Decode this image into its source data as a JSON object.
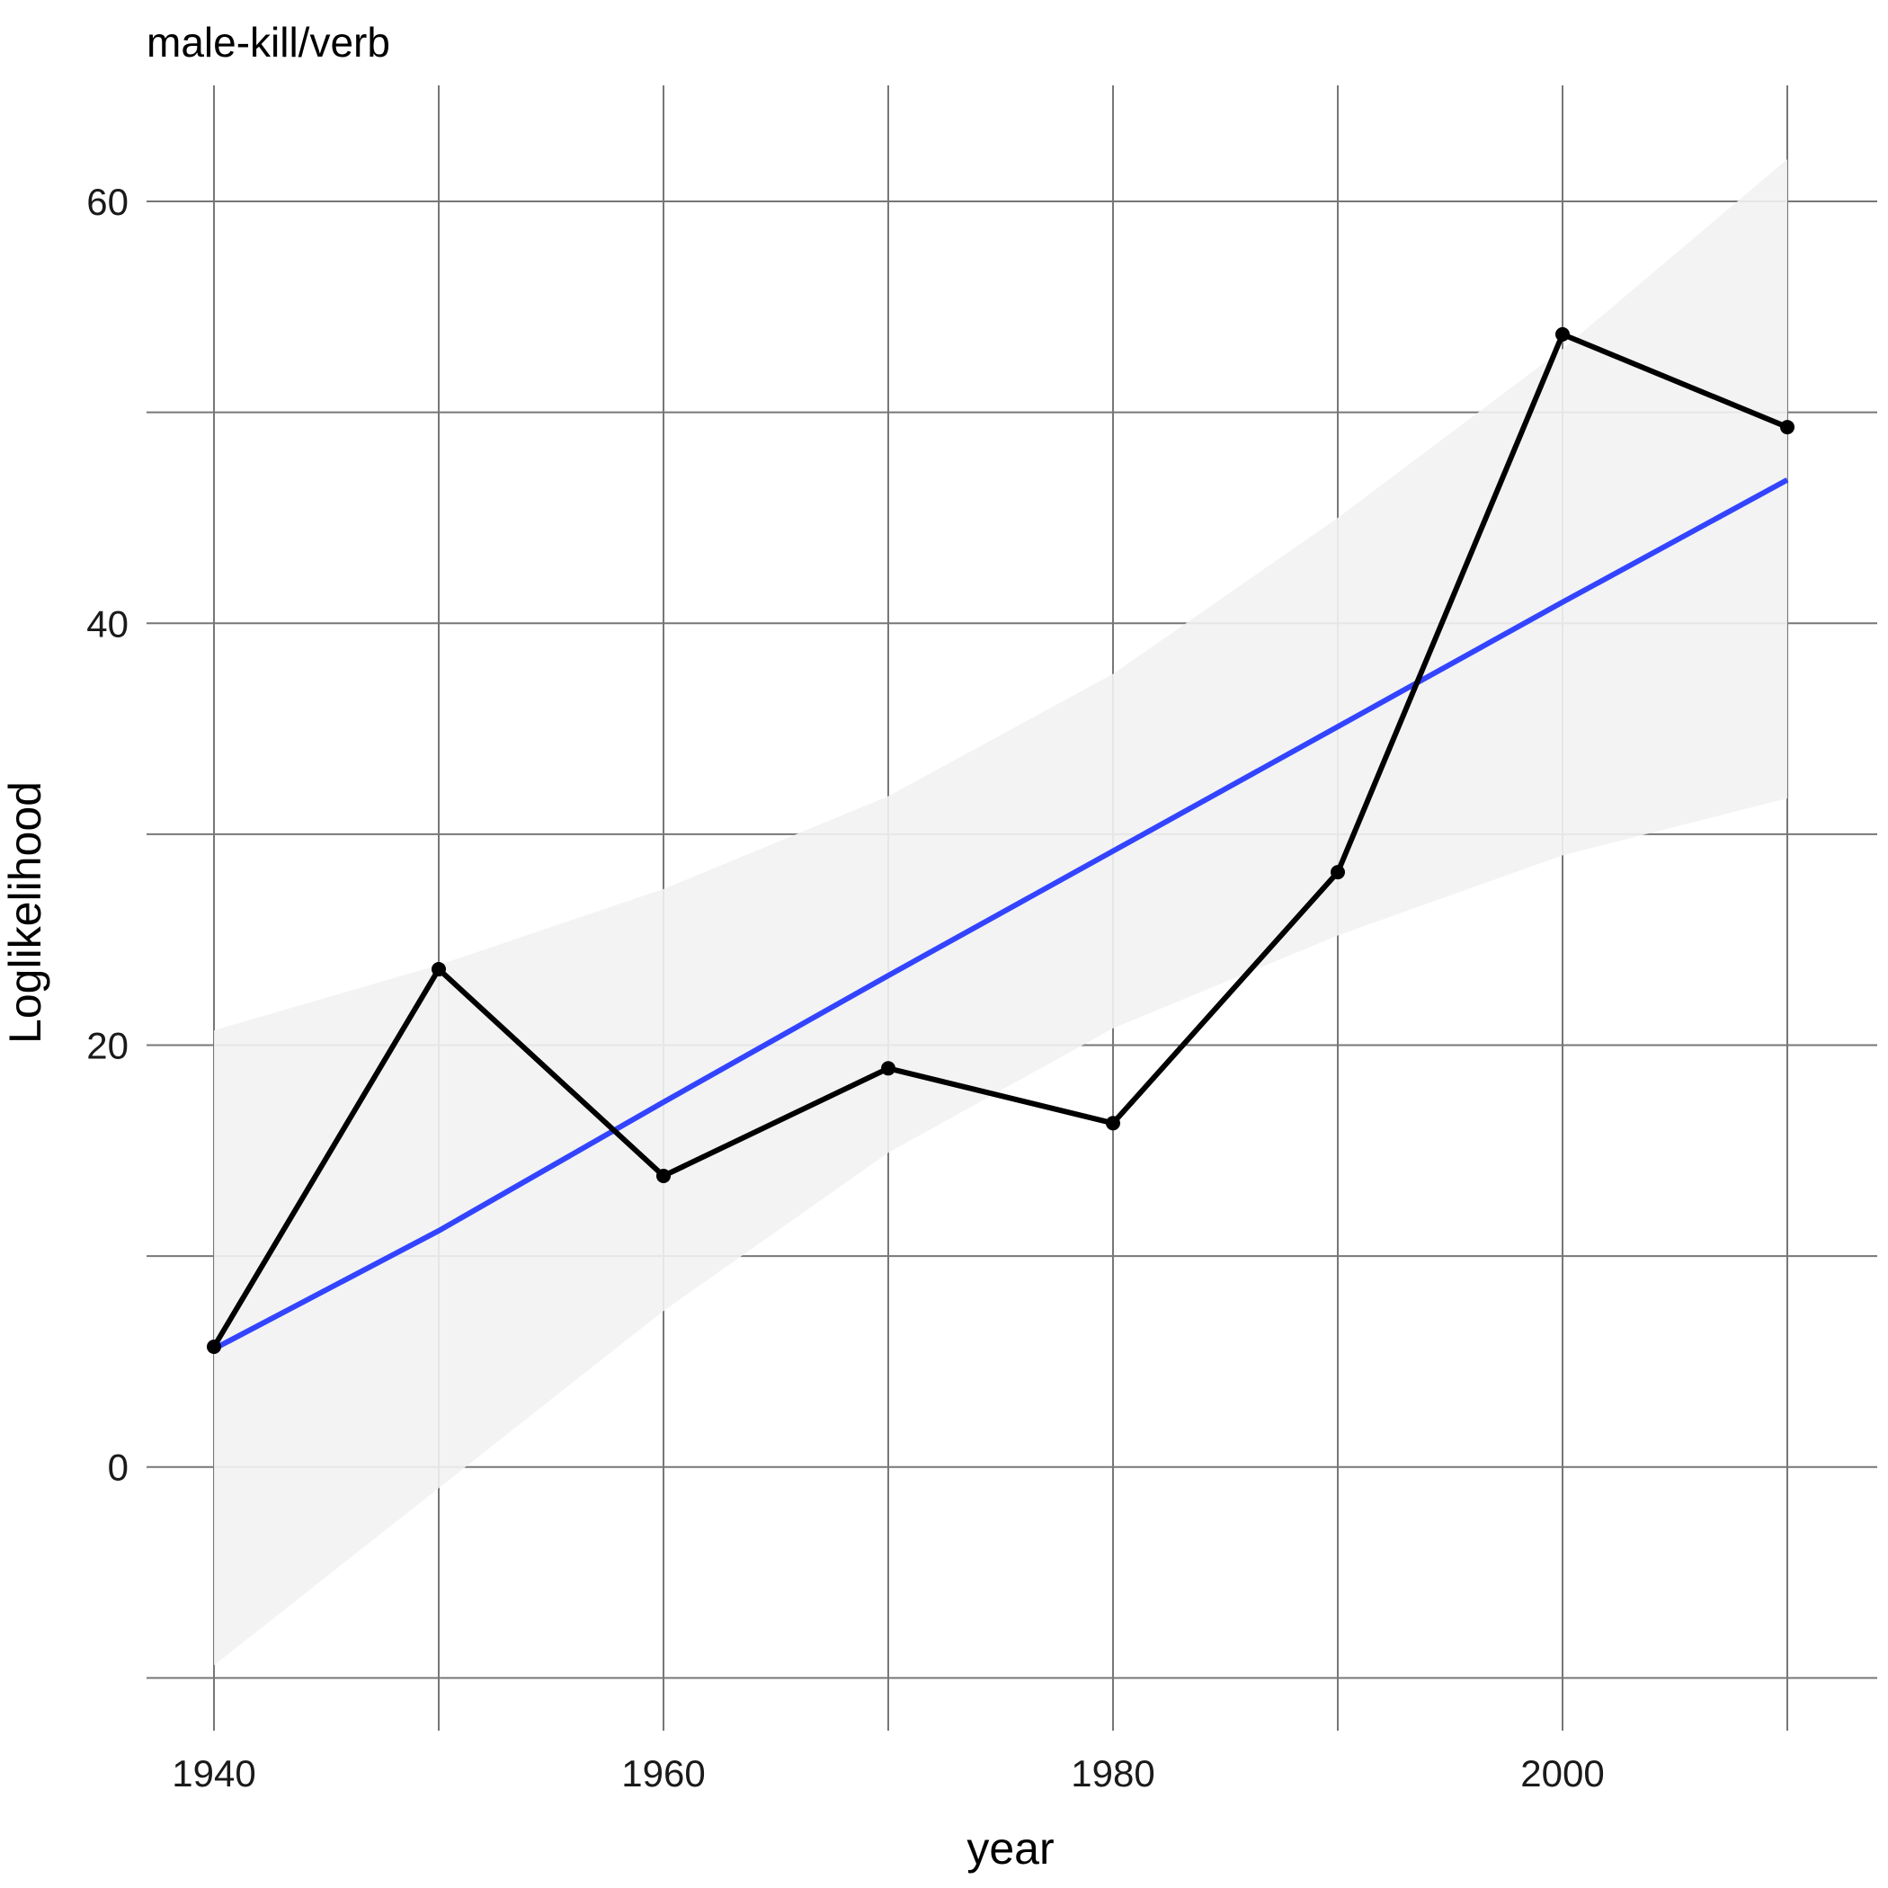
{
  "chart_data": {
    "type": "line",
    "title": "male-kill/verb",
    "xlabel": "year",
    "ylabel": "Loglikelihood",
    "x": [
      1940,
      1950,
      1960,
      1970,
      1980,
      1990,
      2000,
      2010
    ],
    "series": [
      {
        "values": [
          5.7,
          23.6,
          13.8,
          18.9,
          16.3,
          28.2,
          53.7,
          49.3
        ],
        "color": "#000000"
      }
    ],
    "fit": {
      "method": "linear",
      "color": "#3344ff",
      "band_color": "#f2f2f2",
      "x": [
        1940,
        1950,
        1960,
        1970,
        1980,
        1990,
        2000,
        2010
      ],
      "values": [
        5.6,
        11.2,
        17.3,
        23.3,
        29.2,
        35.1,
        41.0,
        46.8
      ],
      "band_upper": [
        20.7,
        23.8,
        27.4,
        31.8,
        37.6,
        45.0,
        53.0,
        62.0
      ],
      "band_lower": [
        -9.4,
        -1.0,
        7.4,
        14.9,
        20.8,
        25.2,
        29.0,
        31.7
      ]
    },
    "xlim": [
      1937,
      2014
    ],
    "ylim": [
      -12.5,
      65.5
    ],
    "x_major_ticks": [
      1940,
      1960,
      1980,
      2000
    ],
    "x_minor_ticks": [
      1950,
      1970,
      1990,
      2010
    ],
    "y_major_ticks": [
      0,
      20,
      40,
      60
    ],
    "y_minor_ticks": [
      -10,
      10,
      30,
      50
    ],
    "x_tick_labels": [
      "1940",
      "1960",
      "1980",
      "2000"
    ],
    "y_tick_labels": [
      "0",
      "20",
      "40",
      "60"
    ],
    "grid": true,
    "grid_color": "#777777"
  }
}
